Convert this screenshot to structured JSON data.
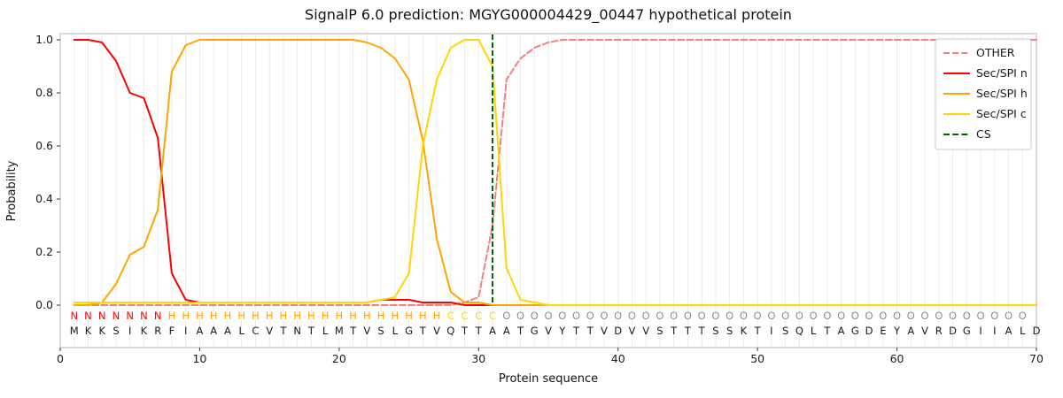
{
  "title": "SignalP 6.0 prediction: MGYG000004429_00447 hypothetical protein",
  "chart_data": {
    "type": "line",
    "title": "SignalP 6.0 prediction: MGYG000004429_00447 hypothetical protein",
    "xlabel": "Protein sequence",
    "ylabel": "Probability",
    "xlim": [
      0,
      70
    ],
    "ylim": [
      0,
      1
    ],
    "xticks": [
      0,
      10,
      20,
      30,
      40,
      50,
      60,
      70
    ],
    "yticks": [
      0.0,
      0.2,
      0.4,
      0.6,
      0.8,
      1.0
    ],
    "grid": "vertical-per-residue",
    "legend_position": "upper right",
    "cs_position": 31,
    "sequence": "MKKSIKRFIAAALCVTNTLMTVSLGTVQTTAATGVYTTVDVVSTTTSSKTISQLTAGDEYAVRDGIIALD",
    "region_labels": "NNNNNNNHHHHHHHHHHHHHHHHHHHHCCCCOOOOOOOOOOOOOOOOOOOOOOOOOOOOOOOOOOOOOO",
    "region_colors": {
      "N": "#ff0000",
      "H": "#ffa500",
      "C": "#ffd700",
      "O": "#8f8f8f"
    },
    "sequence_color": "#1a1a1a",
    "series": [
      {
        "name": "OTHER",
        "color": "#f08080",
        "style": "dashed",
        "values": [
          0,
          0,
          0,
          0,
          0,
          0,
          0,
          0,
          0,
          0,
          0,
          0,
          0,
          0,
          0,
          0,
          0,
          0,
          0,
          0,
          0,
          0,
          0,
          0,
          0,
          0,
          0,
          0,
          0.01,
          0.03,
          0.3,
          0.85,
          0.93,
          0.97,
          0.99,
          1,
          1,
          1,
          1,
          1,
          1,
          1,
          1,
          1,
          1,
          1,
          1,
          1,
          1,
          1,
          1,
          1,
          1,
          1,
          1,
          1,
          1,
          1,
          1,
          1,
          1,
          1,
          1,
          1,
          1,
          1,
          1,
          1,
          1,
          1
        ]
      },
      {
        "name": "Sec/SPI n",
        "color": "#ff0000",
        "style": "solid",
        "values": [
          1,
          1,
          0.99,
          0.92,
          0.8,
          0.78,
          0.63,
          0.12,
          0.02,
          0.01,
          0.01,
          0.01,
          0.01,
          0.01,
          0.01,
          0.01,
          0.01,
          0.01,
          0.01,
          0.01,
          0.01,
          0.01,
          0.02,
          0.02,
          0.02,
          0.01,
          0.01,
          0.01,
          0,
          0,
          0,
          0,
          0,
          0,
          0,
          0,
          0,
          0,
          0,
          0,
          0,
          0,
          0,
          0,
          0,
          0,
          0,
          0,
          0,
          0,
          0,
          0,
          0,
          0,
          0,
          0,
          0,
          0,
          0,
          0,
          0,
          0,
          0,
          0,
          0,
          0,
          0,
          0,
          0,
          0
        ]
      },
      {
        "name": "Sec/SPI h",
        "color": "#ffa500",
        "style": "solid",
        "values": [
          0,
          0,
          0.01,
          0.08,
          0.19,
          0.22,
          0.36,
          0.88,
          0.98,
          1,
          1,
          1,
          1,
          1,
          1,
          1,
          1,
          1,
          1,
          1,
          1,
          0.99,
          0.97,
          0.93,
          0.85,
          0.62,
          0.25,
          0.05,
          0.01,
          0.01,
          0,
          0,
          0,
          0,
          0,
          0,
          0,
          0,
          0,
          0,
          0,
          0,
          0,
          0,
          0,
          0,
          0,
          0,
          0,
          0,
          0,
          0,
          0,
          0,
          0,
          0,
          0,
          0,
          0,
          0,
          0,
          0,
          0,
          0,
          0,
          0,
          0,
          0,
          0,
          0
        ]
      },
      {
        "name": "Sec/SPI c",
        "color": "#ffd700",
        "style": "solid",
        "values": [
          0.01,
          0.01,
          0.01,
          0.01,
          0.01,
          0.01,
          0.01,
          0.01,
          0.01,
          0.01,
          0.01,
          0.01,
          0.01,
          0.01,
          0.01,
          0.01,
          0.01,
          0.01,
          0.01,
          0.01,
          0.01,
          0.01,
          0.02,
          0.03,
          0.12,
          0.6,
          0.85,
          0.97,
          1,
          1,
          0.9,
          0.14,
          0.02,
          0.01,
          0,
          0,
          0,
          0,
          0,
          0,
          0,
          0,
          0,
          0,
          0,
          0,
          0,
          0,
          0,
          0,
          0,
          0,
          0,
          0,
          0,
          0,
          0,
          0,
          0,
          0,
          0,
          0,
          0,
          0,
          0,
          0,
          0,
          0,
          0,
          0
        ]
      },
      {
        "name": "CS",
        "color": "#006400",
        "style": "dashed",
        "vline_x": 31
      }
    ]
  }
}
